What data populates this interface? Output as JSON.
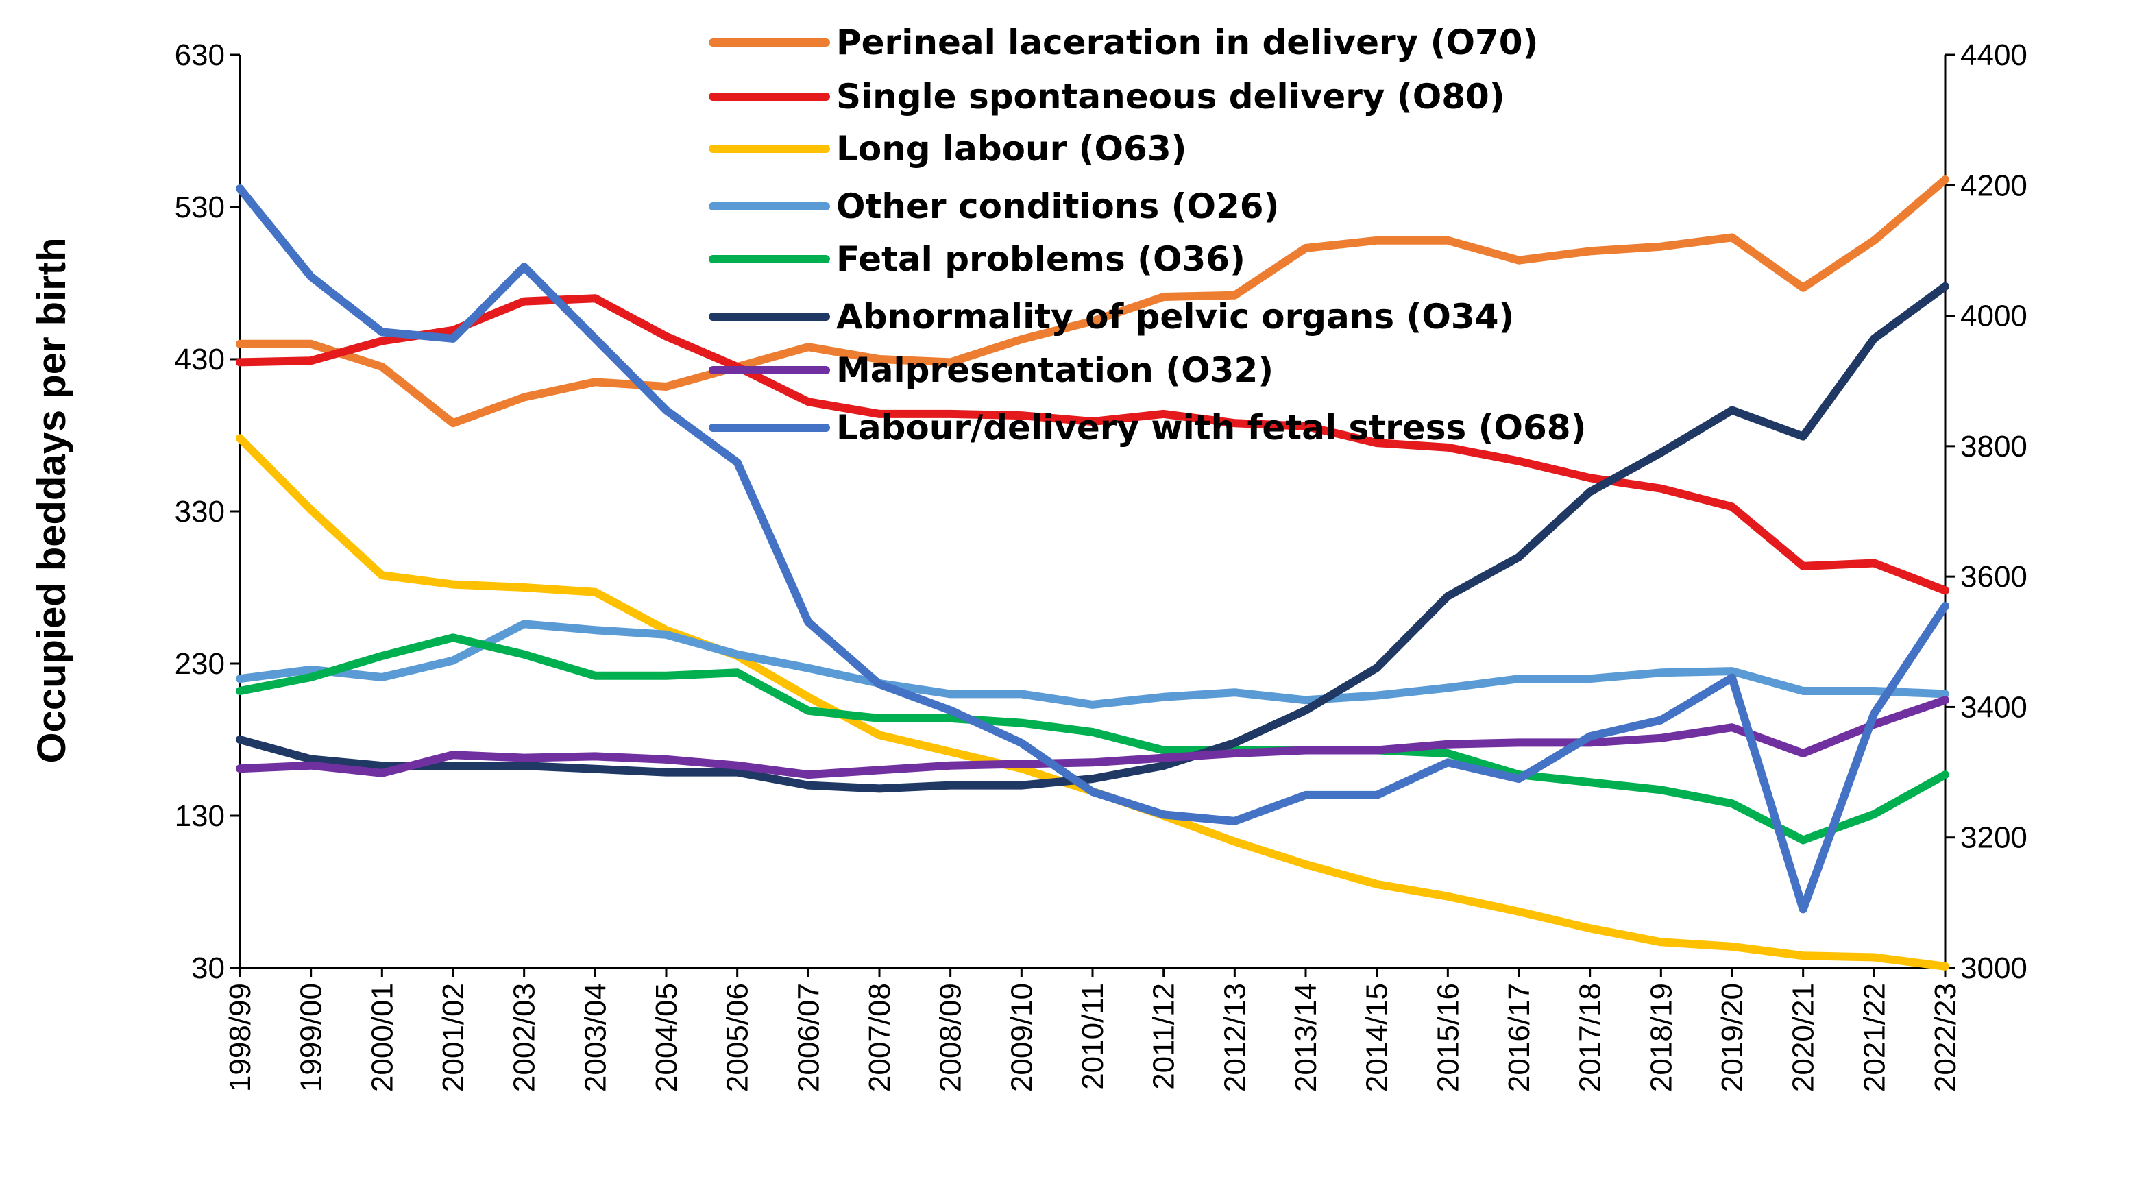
{
  "chart_data": {
    "type": "line",
    "title": "",
    "xlabel": "",
    "ylabel": "Occupied beddays per birth",
    "y2label": "",
    "ylim": [
      30,
      630
    ],
    "y2lim": [
      3000,
      4400
    ],
    "yticks": [
      30,
      130,
      230,
      330,
      430,
      530,
      630
    ],
    "y2ticks": [
      3000,
      3200,
      3400,
      3600,
      3800,
      4000,
      4200,
      4400
    ],
    "legend_position": "top-center",
    "categories": [
      "1998/99",
      "1999/00",
      "2000/01",
      "2001/02",
      "2002/03",
      "2003/04",
      "2004/05",
      "2005/06",
      "2006/07",
      "2007/08",
      "2008/09",
      "2009/10",
      "2010/11",
      "2011/12",
      "2012/13",
      "2013/14",
      "2014/15",
      "2015/16",
      "2016/17",
      "2017/18",
      "2018/19",
      "2019/20",
      "2020/21",
      "2021/22",
      "2022/23"
    ],
    "series": [
      {
        "name": "Perineal laceration in delivery (O70)",
        "color": "#ED7D31",
        "axis": "left",
        "values": [
          440,
          440,
          425,
          388,
          405,
          415,
          412,
          425,
          438,
          430,
          428,
          443,
          455,
          471,
          472,
          503,
          508,
          508,
          495,
          501,
          504,
          510,
          477,
          508,
          548
        ]
      },
      {
        "name": "Single spontaneous delivery (O80)",
        "color": "#E41A1C",
        "axis": "left",
        "values": [
          428,
          429,
          442,
          449,
          468,
          470,
          445,
          425,
          402,
          394,
          394,
          393,
          389,
          394,
          388,
          386,
          375,
          372,
          363,
          352,
          345,
          333,
          294,
          296,
          278
        ]
      },
      {
        "name": "Long labour (O63)",
        "color": "#FFC000",
        "axis": "left",
        "values": [
          378,
          331,
          288,
          282,
          280,
          277,
          252,
          235,
          208,
          183,
          172,
          161,
          146,
          130,
          113,
          98,
          85,
          77,
          67,
          56,
          47,
          44,
          38,
          37,
          31
        ]
      },
      {
        "name": "Other conditions (O26)",
        "color": "#5B9BD5",
        "axis": "left",
        "values": [
          220,
          226,
          221,
          232,
          256,
          252,
          249,
          236,
          227,
          217,
          210,
          210,
          203,
          208,
          211,
          206,
          209,
          214,
          220,
          220,
          224,
          225,
          212,
          212,
          210
        ]
      },
      {
        "name": "Fetal problems (O36)",
        "color": "#00B050",
        "axis": "left",
        "values": [
          212,
          221,
          235,
          247,
          236,
          222,
          222,
          224,
          199,
          194,
          194,
          191,
          185,
          173,
          173,
          173,
          173,
          171,
          157,
          152,
          147,
          138,
          114,
          131,
          157
        ]
      },
      {
        "name": "Abnormality of pelvic organs (O34)",
        "color": "#1F3864",
        "axis": "right",
        "values": [
          3350,
          3320,
          3310,
          3310,
          3310,
          3305,
          3300,
          3300,
          3280,
          3275,
          3280,
          3280,
          3290,
          3310,
          3345,
          3395,
          3460,
          3570,
          3630,
          3730,
          3790,
          3855,
          3815,
          3965,
          4045
        ]
      },
      {
        "name": "Malpresentation (O32)",
        "color": "#7030A0",
        "axis": "left",
        "values": [
          161,
          163,
          158,
          170,
          168,
          169,
          167,
          163,
          157,
          160,
          163,
          164,
          165,
          168,
          171,
          173,
          173,
          177,
          178,
          178,
          181,
          188,
          171,
          190,
          206
        ]
      },
      {
        "name": "Labour/delivery with fetal stress  (O68)",
        "color": "#4472C4",
        "axis": "right",
        "values": [
          4195,
          4060,
          3975,
          3965,
          4075,
          3965,
          3855,
          3775,
          3530,
          3435,
          3395,
          3345,
          3270,
          3235,
          3225,
          3265,
          3265,
          3315,
          3290,
          3355,
          3380,
          3445,
          3090,
          3390,
          3555
        ]
      }
    ]
  }
}
